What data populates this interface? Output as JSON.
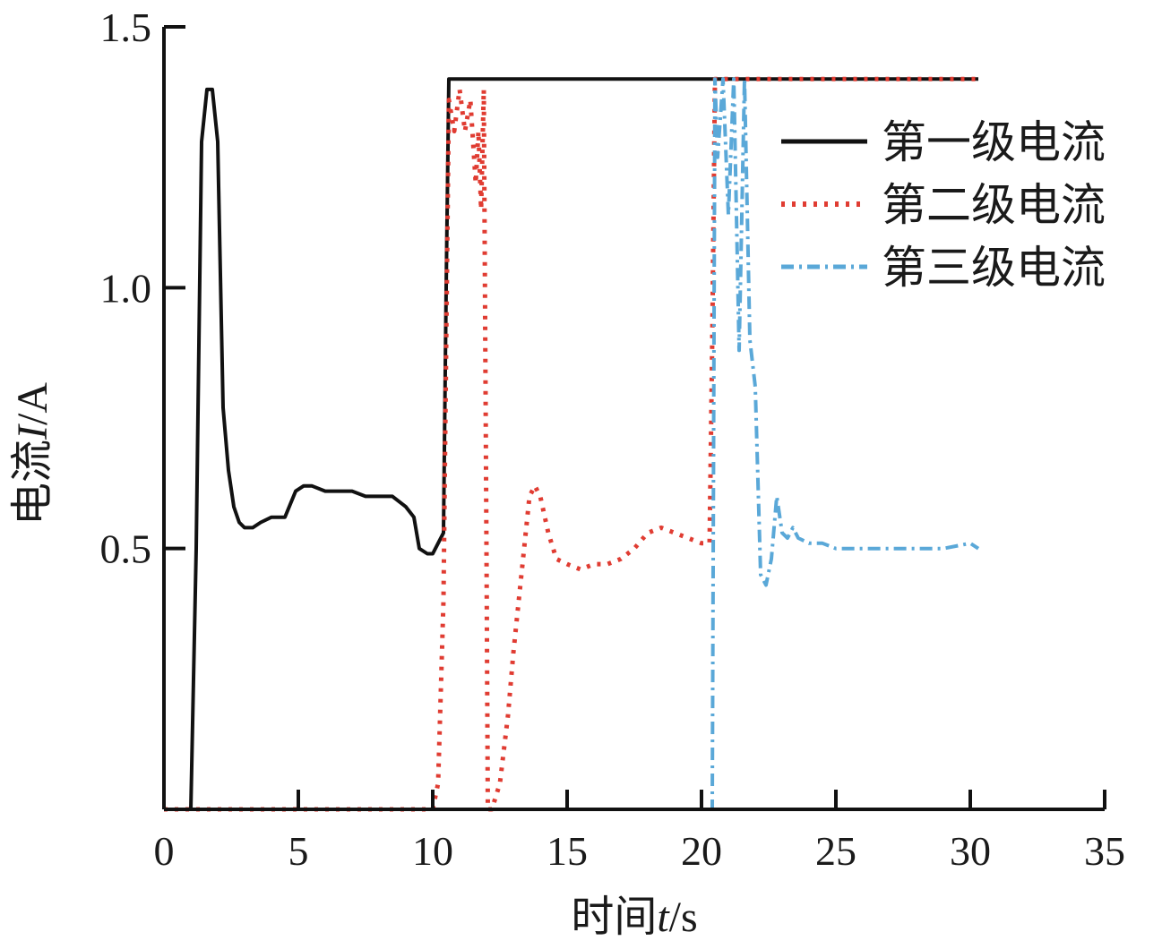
{
  "chart_data": {
    "type": "line",
    "xlabel_main": "时间",
    "xlabel_var": "t",
    "xlabel_unit": "/s",
    "ylabel_main": "电流",
    "ylabel_var": "I",
    "ylabel_unit": "/A",
    "xlim": [
      0,
      35
    ],
    "ylim": [
      0,
      1.5
    ],
    "x_ticks": [
      "0",
      "5",
      "10",
      "15",
      "20",
      "25",
      "30",
      "35"
    ],
    "y_ticks": [
      "0.5",
      "1.0",
      "1.5"
    ],
    "legend_position": "top-right",
    "series": [
      {
        "name": "第一级电流",
        "color": "#111111",
        "style": "solid",
        "x": [
          0.0,
          1.0,
          1.2,
          1.4,
          1.6,
          1.8,
          2.0,
          2.2,
          2.4,
          2.6,
          2.8,
          3.0,
          3.3,
          3.6,
          4.0,
          4.5,
          4.9,
          5.2,
          5.5,
          6.0,
          6.5,
          7.0,
          7.5,
          8.0,
          8.5,
          9.0,
          9.3,
          9.5,
          9.8,
          10.0,
          10.2,
          10.4,
          10.5,
          10.6,
          12.0,
          14.0,
          16.0,
          18.0,
          20.0,
          22.0,
          25.0,
          28.0,
          30.3
        ],
        "y": [
          0.0,
          0.0,
          0.5,
          1.28,
          1.38,
          1.38,
          1.28,
          0.77,
          0.65,
          0.58,
          0.55,
          0.54,
          0.54,
          0.55,
          0.56,
          0.56,
          0.61,
          0.62,
          0.62,
          0.61,
          0.61,
          0.61,
          0.6,
          0.6,
          0.6,
          0.58,
          0.56,
          0.5,
          0.49,
          0.49,
          0.51,
          0.53,
          1.0,
          1.4,
          1.4,
          1.4,
          1.4,
          1.4,
          1.4,
          1.4,
          1.4,
          1.4,
          1.4
        ]
      },
      {
        "name": "第二级电流",
        "color": "#e03c32",
        "style": "dotted",
        "x": [
          0.0,
          10.0,
          10.2,
          10.4,
          10.6,
          10.8,
          11.0,
          11.2,
          11.4,
          11.6,
          11.7,
          11.8,
          11.9,
          12.0,
          12.05,
          12.2,
          12.5,
          12.8,
          13.0,
          13.3,
          13.6,
          13.8,
          14.0,
          14.3,
          14.6,
          15.0,
          15.5,
          16.0,
          16.5,
          17.0,
          17.5,
          18.0,
          18.5,
          19.0,
          19.5,
          20.0,
          20.2,
          20.3,
          20.4,
          20.5,
          21.0,
          23.0,
          26.0,
          30.3
        ],
        "y": [
          0.0,
          0.0,
          0.05,
          0.4,
          1.36,
          1.3,
          1.38,
          1.3,
          1.36,
          1.2,
          1.3,
          1.15,
          1.38,
          0.5,
          0.0,
          0.0,
          0.05,
          0.18,
          0.3,
          0.45,
          0.6,
          0.62,
          0.6,
          0.53,
          0.48,
          0.47,
          0.46,
          0.47,
          0.47,
          0.48,
          0.5,
          0.53,
          0.54,
          0.53,
          0.52,
          0.51,
          0.51,
          0.51,
          0.9,
          1.4,
          1.4,
          1.4,
          1.4,
          1.4
        ]
      },
      {
        "name": "第三级电流",
        "color": "#5aa8d8",
        "style": "dashdot",
        "x": [
          0.0,
          20.3,
          20.4,
          20.5,
          20.6,
          20.8,
          21.0,
          21.2,
          21.4,
          21.6,
          21.8,
          22.0,
          22.2,
          22.4,
          22.6,
          22.8,
          23.0,
          23.2,
          23.4,
          23.6,
          24.0,
          24.5,
          25.0,
          26.0,
          27.0,
          28.0,
          29.0,
          30.0,
          30.3
        ],
        "y": [
          0.0,
          0.0,
          0.0,
          1.4,
          1.25,
          1.4,
          1.14,
          1.4,
          0.88,
          1.4,
          0.9,
          0.81,
          0.45,
          0.43,
          0.48,
          0.6,
          0.53,
          0.52,
          0.54,
          0.52,
          0.51,
          0.51,
          0.5,
          0.5,
          0.5,
          0.5,
          0.5,
          0.51,
          0.5
        ]
      }
    ]
  }
}
